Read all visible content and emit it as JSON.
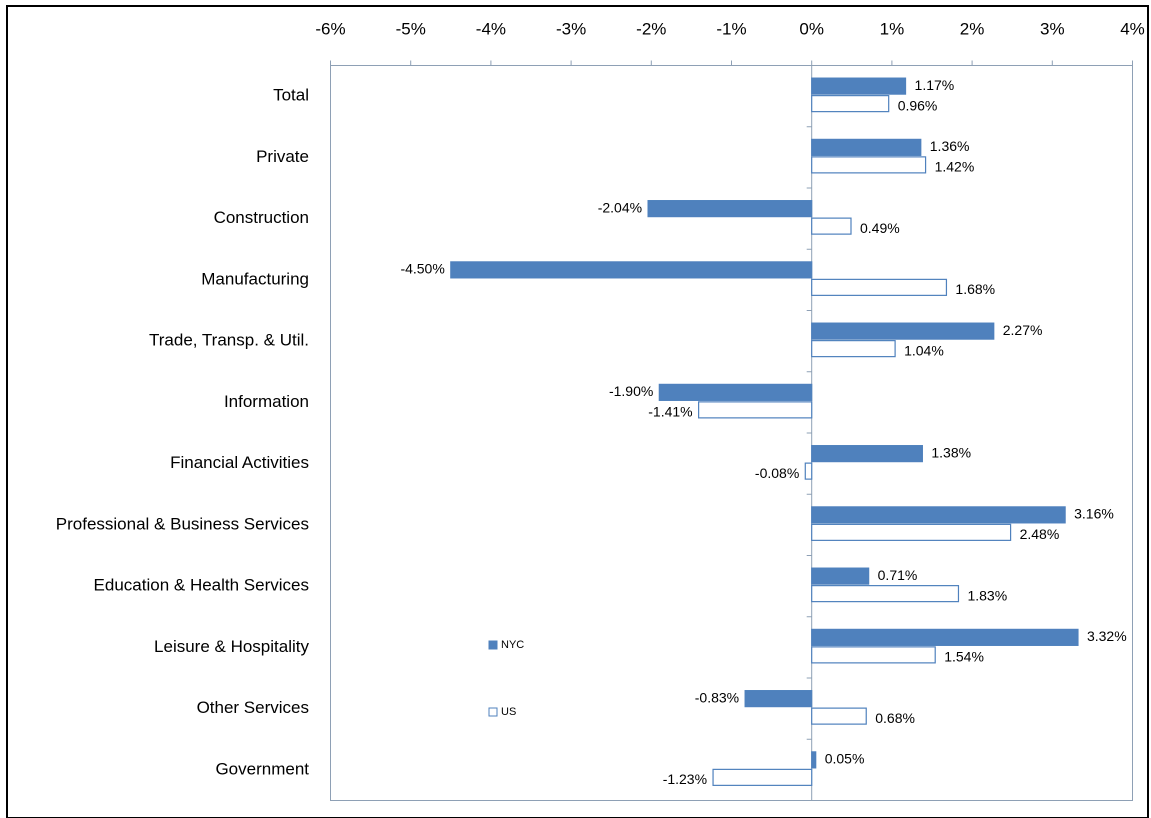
{
  "chart_data": {
    "type": "bar",
    "orientation": "horizontal",
    "categories": [
      "Total",
      "Private",
      "Construction",
      "Manufacturing",
      "Trade, Transp. & Util.",
      "Information",
      "Financial Activities",
      "Professional & Business Services",
      "Education & Health Services",
      "Leisure & Hospitality",
      "Other Services",
      "Government"
    ],
    "series": [
      {
        "name": "NYC",
        "color": "#4f81bd",
        "fill": true,
        "values": [
          1.17,
          1.36,
          -2.04,
          -4.5,
          2.27,
          -1.9,
          1.38,
          3.16,
          0.71,
          3.32,
          -0.83,
          0.05
        ],
        "value_labels": [
          "1.17%",
          "1.36%",
          "-2.04%",
          "-4.50%",
          "2.27%",
          "-1.90%",
          "1.38%",
          "3.16%",
          "0.71%",
          "3.32%",
          "-0.83%",
          "0.05%"
        ]
      },
      {
        "name": "US",
        "color": "#4f81bd",
        "fill": false,
        "values": [
          0.96,
          1.42,
          0.49,
          1.68,
          1.04,
          -1.41,
          -0.08,
          2.48,
          1.83,
          1.54,
          0.68,
          -1.23
        ],
        "value_labels": [
          "0.96%",
          "1.42%",
          "0.49%",
          "1.68%",
          "1.04%",
          "-1.41%",
          "-0.08%",
          "2.48%",
          "1.83%",
          "1.54%",
          "0.68%",
          "-1.23%"
        ]
      }
    ],
    "xlim": [
      -6,
      4
    ],
    "xticks": [
      {
        "value": -6,
        "label": "-6%"
      },
      {
        "value": -5,
        "label": "-5%"
      },
      {
        "value": -4,
        "label": "-4%"
      },
      {
        "value": -3,
        "label": "-3%"
      },
      {
        "value": -2,
        "label": "-2%"
      },
      {
        "value": -1,
        "label": "-1%"
      },
      {
        "value": 0,
        "label": "0%"
      },
      {
        "value": 1,
        "label": "1%"
      },
      {
        "value": 2,
        "label": "2%"
      },
      {
        "value": 3,
        "label": "3%"
      },
      {
        "value": 4,
        "label": "4%"
      }
    ],
    "grid": false
  }
}
